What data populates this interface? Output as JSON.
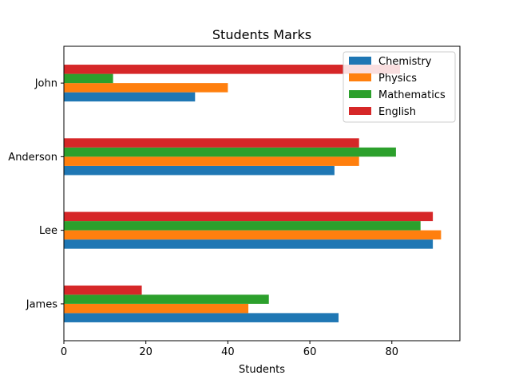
{
  "chart_data": {
    "type": "bar",
    "orientation": "horizontal",
    "title": "Students Marks",
    "xlabel": "Students",
    "ylabel": "",
    "xlim": [
      0,
      96.6
    ],
    "xticks": [
      0,
      20,
      40,
      60,
      80
    ],
    "categories": [
      "James",
      "Lee",
      "Anderson",
      "John"
    ],
    "series": [
      {
        "name": "Chemistry",
        "color": "#1f77b4",
        "values": [
          67,
          90,
          66,
          32
        ]
      },
      {
        "name": "Physics",
        "color": "#ff7f0e",
        "values": [
          45,
          92,
          72,
          40
        ]
      },
      {
        "name": "Mathematics",
        "color": "#2ca02c",
        "values": [
          50,
          87,
          81,
          12
        ]
      },
      {
        "name": "English",
        "color": "#d62728",
        "values": [
          19,
          90,
          72,
          82
        ]
      }
    ],
    "grid": false,
    "legend_position": "top-right"
  }
}
